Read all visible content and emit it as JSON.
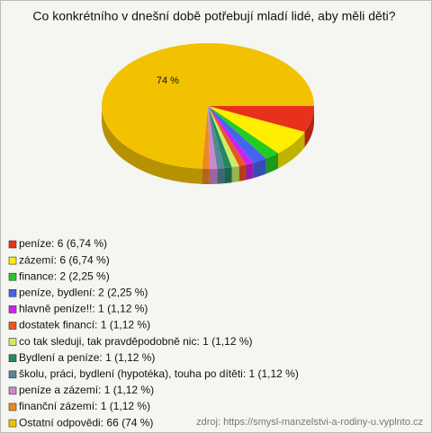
{
  "chart_data": {
    "type": "pie",
    "title": "Co konkrétního v dnešní době potřebují mladí lidé, aby měli děti?",
    "categories": [
      "peníze",
      "zázemí",
      "finance",
      "peníze, bydlení",
      "hlavně peníze!!",
      "dostatek financí",
      "co tak sleduji, tak pravděpodobně nic",
      "Bydlení a peníze",
      "školu, práci, bydlení (hypotéka), touha po dítěti",
      "peníze a zázemí",
      "finanční zázemí",
      "Ostatní odpovědi"
    ],
    "values": [
      6.74,
      6.74,
      2.25,
      2.25,
      1.12,
      1.12,
      1.12,
      1.12,
      1.12,
      1.12,
      1.12,
      74
    ],
    "value_labels": [
      null,
      null,
      null,
      null,
      null,
      null,
      null,
      null,
      null,
      null,
      null,
      "74 %"
    ],
    "legend_labels": [
      "peníze: 6 (6,74 %)",
      "zázemí: 6 (6,74 %)",
      "finance: 2 (2,25 %)",
      "peníze, bydlení: 2 (2,25 %)",
      "hlavně peníze!!: 1 (1,12 %)",
      "dostatek financí: 1 (1,12 %)",
      "co tak sleduji, tak pravděpodobně nic: 1 (1,12 %)",
      "Bydlení a peníze: 1 (1,12 %)",
      "školu, práci, bydlení (hypotéka), touha po dítěti: 1 (1,12 %)",
      "peníze a zázemí: 1 (1,12 %)",
      "finanční zázemí: 1 (1,12 %)",
      "Ostatní odpovědi: 66 (74 %)"
    ],
    "colors": [
      "#e8311a",
      "#ffee00",
      "#22cc22",
      "#4466ee",
      "#cc22ee",
      "#ee5522",
      "#ccee66",
      "#228866",
      "#558899",
      "#cc88cc",
      "#ee8822",
      "#f2c200"
    ],
    "source": "zdroj: https://smysl-manzelstvi-a-rodiny-u.vyplnto.cz"
  }
}
